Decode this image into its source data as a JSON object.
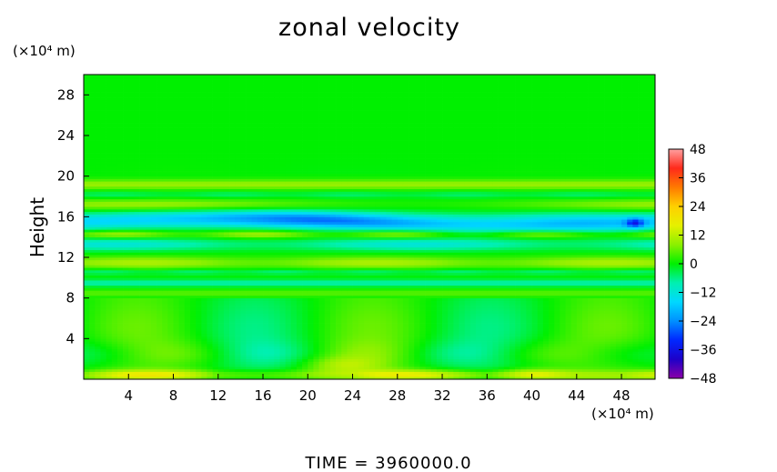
{
  "chart_data": {
    "type": "heatmap",
    "title": "zonal velocity",
    "ylabel": "Height",
    "x_unit": "(×10⁴ m)",
    "y_unit": "(×10⁴ m)",
    "x_ticks": [
      4,
      8,
      12,
      16,
      20,
      24,
      28,
      32,
      36,
      40,
      44,
      48
    ],
    "y_ticks": [
      4,
      8,
      12,
      16,
      20,
      24,
      28
    ],
    "xlim": [
      0,
      51
    ],
    "ylim": [
      0,
      30
    ],
    "colorbar": {
      "ticks": [
        48,
        36,
        24,
        12,
        0,
        -12,
        -24,
        -36,
        -48
      ],
      "tick_labels": [
        "48",
        "36",
        "24",
        "12",
        "0",
        "−12",
        "−24",
        "−36",
        "−48"
      ],
      "range": [
        -48,
        48
      ],
      "colors": [
        {
          "value": -48,
          "color": "#8a00a8"
        },
        {
          "value": -40,
          "color": "#1e00c8"
        },
        {
          "value": -32,
          "color": "#0028ff"
        },
        {
          "value": -24,
          "color": "#0090ff"
        },
        {
          "value": -16,
          "color": "#00d8ff"
        },
        {
          "value": -8,
          "color": "#00f0b0"
        },
        {
          "value": 0,
          "color": "#00f000"
        },
        {
          "value": 8,
          "color": "#8cf000"
        },
        {
          "value": 16,
          "color": "#e6f000"
        },
        {
          "value": 24,
          "color": "#ffd000"
        },
        {
          "value": 32,
          "color": "#ff7a00"
        },
        {
          "value": 40,
          "color": "#ff2a1a"
        },
        {
          "value": 48,
          "color": "#ffa0a0"
        }
      ]
    },
    "description_of_field": [
      {
        "y_range": [
          20,
          30
        ],
        "value": 0
      },
      {
        "y_range": [
          18.5,
          20
        ],
        "value": 10
      },
      {
        "y_range": [
          14.5,
          16.5
        ],
        "value": -28,
        "x_range": [
          13,
          30
        ]
      },
      {
        "y_range": [
          12.5,
          14
        ],
        "value": -14
      },
      {
        "y_range": [
          11,
          12.5
        ],
        "value": 12
      },
      {
        "y_range": [
          8.5,
          10
        ],
        "value": -8
      },
      {
        "y_range": [
          0,
          1
        ],
        "value": 16
      }
    ]
  },
  "footer": {
    "text": "TIME  =  3960000.0"
  }
}
